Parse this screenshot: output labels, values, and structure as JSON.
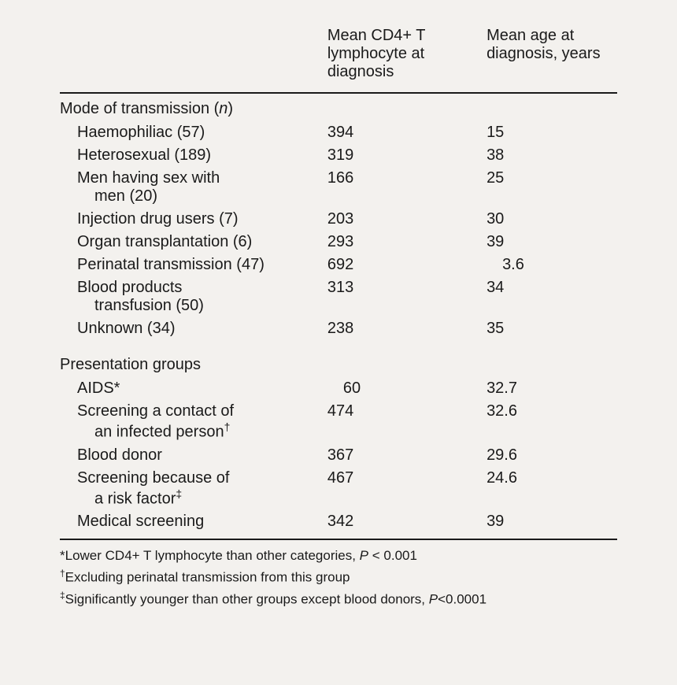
{
  "table": {
    "background_color": "#f3f1ee",
    "text_color": "#1a1a1a",
    "border_color": "#1a1a1a",
    "border_width": 2,
    "body_fontsize": 20,
    "footnote_fontsize": 17,
    "font_family": "Arial, Helvetica, sans-serif",
    "indent_level1": 22,
    "indent_level2": 22,
    "column_widths_pct": [
      48,
      28,
      24
    ],
    "headers": {
      "col1": "",
      "col2": "Mean CD4+ T lymphocyte at diagnosis",
      "col3": "Mean age at diagnosis, years"
    },
    "sections": [
      {
        "title_pre": "Mode of transmission (",
        "title_var": "n",
        "title_post": ")",
        "rows": [
          {
            "label": "Haemophiliac (57)",
            "label2": "",
            "cd4": "394",
            "age": "15",
            "age_indent": false
          },
          {
            "label": "Heterosexual (189)",
            "label2": "",
            "cd4": "319",
            "age": "38",
            "age_indent": false
          },
          {
            "label": "Men having sex with",
            "label2": "men (20)",
            "cd4": "166",
            "age": "25",
            "age_indent": false
          },
          {
            "label": "Injection drug users (7)",
            "label2": "",
            "cd4": "203",
            "age": "30",
            "age_indent": false
          },
          {
            "label": "Organ transplantation (6)",
            "label2": "",
            "cd4": "293",
            "age": "39",
            "age_indent": false
          },
          {
            "label": "Perinatal transmission (47)",
            "label2": "",
            "cd4": "692",
            "age": "3.6",
            "age_indent": true
          },
          {
            "label": "Blood products",
            "label2": "transfusion (50)",
            "cd4": "313",
            "age": "34",
            "age_indent": false
          },
          {
            "label": "Unknown (34)",
            "label2": "",
            "cd4": "238",
            "age": "35",
            "age_indent": false
          }
        ]
      },
      {
        "title_pre": "Presentation groups",
        "title_var": "",
        "title_post": "",
        "rows": [
          {
            "label": "AIDS*",
            "label2": "",
            "cd4": "60",
            "cd4_indent": true,
            "age": "32.7",
            "age_indent": false
          },
          {
            "label": "Screening a contact of",
            "label2": "an infected person",
            "sup2": "†",
            "cd4": "474",
            "age": "32.6",
            "age_indent": false
          },
          {
            "label": "Blood donor",
            "label2": "",
            "cd4": "367",
            "age": "29.6",
            "age_indent": false
          },
          {
            "label": "Screening because of",
            "label2": "a risk factor",
            "sup2": "‡",
            "cd4": "467",
            "age": "24.6",
            "age_indent": false
          },
          {
            "label": "Medical screening",
            "label2": "",
            "cd4": "342",
            "age": "39",
            "age_indent": false
          }
        ]
      }
    ],
    "footnotes": [
      {
        "sym": "*",
        "text_pre": "Lower CD4+ T lymphocyte than other categories, ",
        "p_label": "P",
        "op": " < ",
        "val": "0.001"
      },
      {
        "sym": "†",
        "text_pre": "Excluding perinatal transmission from this group",
        "p_label": "",
        "op": "",
        "val": ""
      },
      {
        "sym": "‡",
        "text_pre": "Significantly younger than other groups except blood donors, ",
        "p_label": "P",
        "op": "<",
        "val": "0.0001"
      }
    ]
  }
}
